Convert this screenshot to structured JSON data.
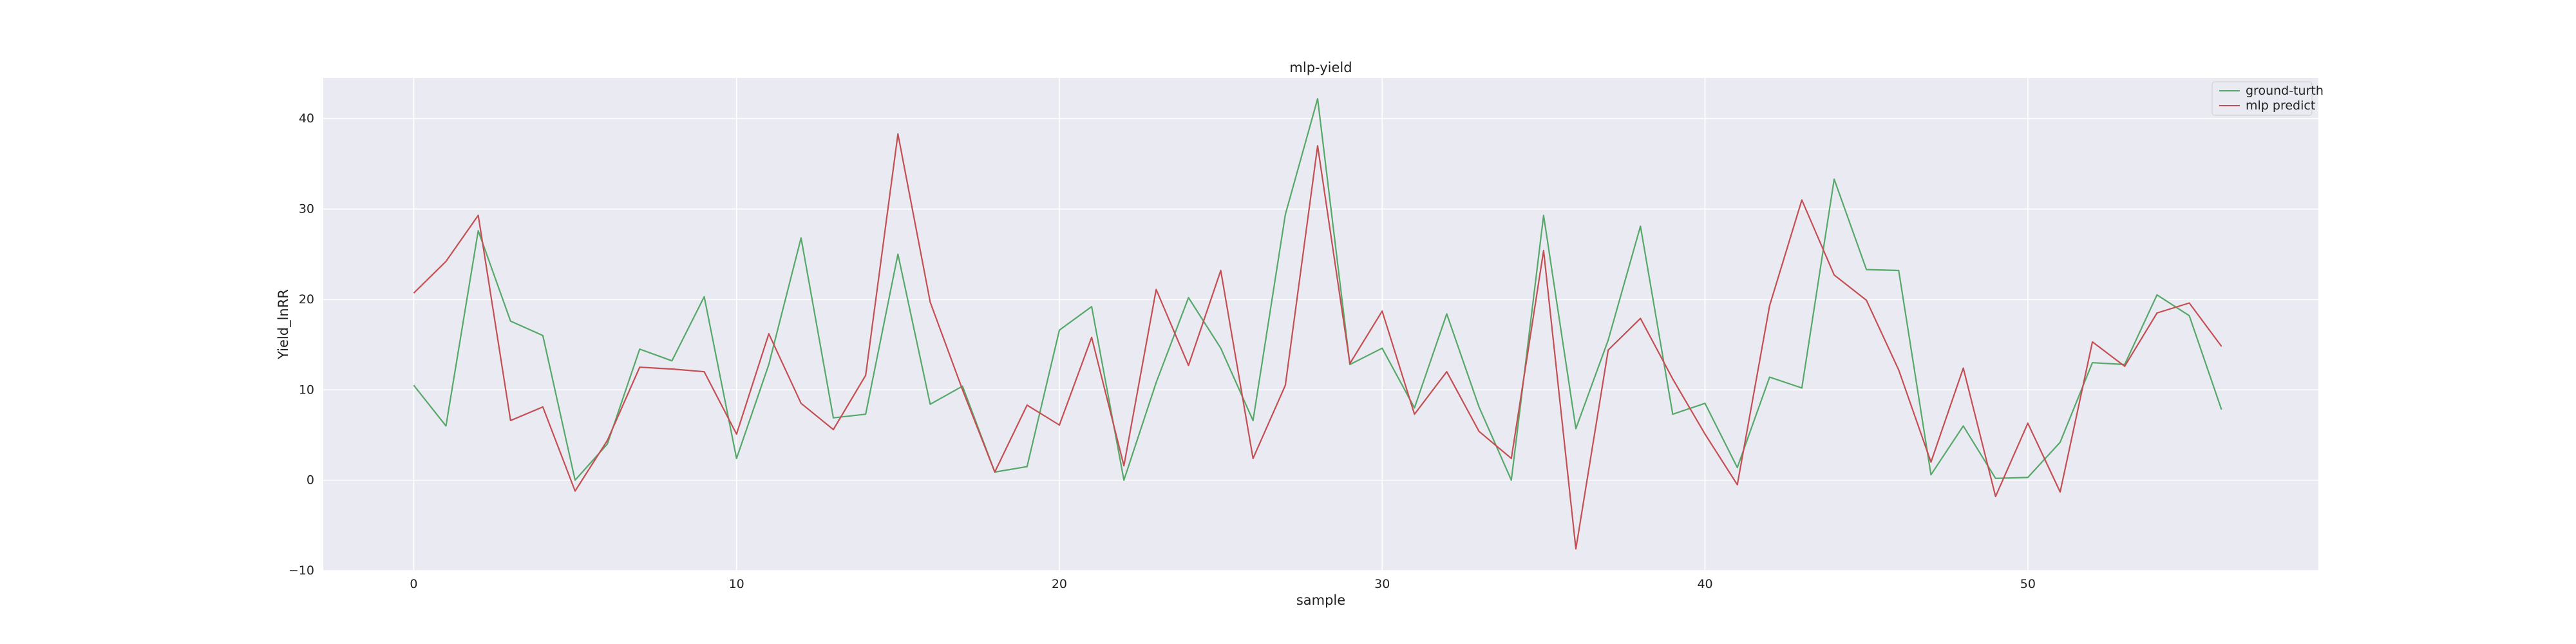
{
  "chart_data": {
    "type": "line",
    "title": "mlp-yield",
    "xlabel": "sample",
    "ylabel": "Yield_lnRR",
    "xlim": [
      -2.8,
      59
    ],
    "ylim": [
      -10,
      44.5
    ],
    "xticks": [
      0,
      10,
      20,
      30,
      40,
      50
    ],
    "xtick_labels": [
      "0",
      "10",
      "20",
      "30",
      "40",
      "50"
    ],
    "yticks": [
      -10,
      0,
      10,
      20,
      30,
      40
    ],
    "ytick_labels": [
      "−10",
      "0",
      "10",
      "20",
      "30",
      "40"
    ],
    "grid": true,
    "legend_position": "top-right",
    "background_color": "#eaeaf2",
    "series": [
      {
        "name": "ground-turth",
        "color": "#55a868",
        "x": [
          0,
          1,
          2,
          3,
          4,
          5,
          6,
          7,
          8,
          9,
          10,
          11,
          12,
          13,
          14,
          15,
          16,
          17,
          18,
          19,
          20,
          21,
          22,
          23,
          24,
          25,
          26,
          27,
          28,
          29,
          30,
          31,
          32,
          33,
          34,
          35,
          36,
          37,
          38,
          39,
          40,
          41,
          42,
          43,
          44,
          45,
          46,
          47,
          48,
          49,
          50,
          51,
          52,
          53,
          54,
          55,
          56
        ],
        "values": [
          10.5,
          6.0,
          27.6,
          17.6,
          16.0,
          0.0,
          4.0,
          14.5,
          13.2,
          20.3,
          2.4,
          12.8,
          26.8,
          6.9,
          7.3,
          25.0,
          8.4,
          10.4,
          0.9,
          1.5,
          16.6,
          19.2,
          0.0,
          10.8,
          20.2,
          14.6,
          6.6,
          29.4,
          42.2,
          12.8,
          14.6,
          8.0,
          18.4,
          8.1,
          0.0,
          29.3,
          5.7,
          15.5,
          28.1,
          7.3,
          8.5,
          1.4,
          11.4,
          10.2,
          33.3,
          23.3,
          23.2,
          0.6,
          6.0,
          0.2,
          0.3,
          4.2,
          13.0,
          12.8,
          20.5,
          18.2,
          7.8
        ]
      },
      {
        "name": "mlp predict",
        "color": "#c44e52",
        "x": [
          0,
          1,
          2,
          3,
          4,
          5,
          6,
          7,
          8,
          9,
          10,
          11,
          12,
          13,
          14,
          15,
          16,
          17,
          18,
          19,
          20,
          21,
          22,
          23,
          24,
          25,
          26,
          27,
          28,
          29,
          30,
          31,
          32,
          33,
          34,
          35,
          36,
          37,
          38,
          39,
          40,
          41,
          42,
          43,
          44,
          45,
          46,
          47,
          48,
          49,
          50,
          51,
          52,
          53,
          54,
          55,
          56
        ],
        "values": [
          20.7,
          24.2,
          29.3,
          6.6,
          8.1,
          -1.2,
          4.4,
          12.5,
          12.3,
          12.0,
          5.1,
          16.2,
          8.5,
          5.6,
          11.6,
          38.3,
          19.7,
          10.0,
          0.9,
          8.3,
          6.1,
          15.8,
          1.6,
          21.1,
          12.7,
          23.2,
          2.4,
          10.5,
          37.0,
          12.9,
          18.7,
          7.3,
          12.0,
          5.4,
          2.4,
          25.4,
          -7.6,
          14.4,
          17.9,
          11.2,
          5.1,
          -0.5,
          19.3,
          31.0,
          22.7,
          19.9,
          12.2,
          2.0,
          12.4,
          -1.8,
          6.3,
          -1.3,
          15.3,
          12.6,
          18.5,
          19.6,
          14.8
        ]
      }
    ]
  }
}
